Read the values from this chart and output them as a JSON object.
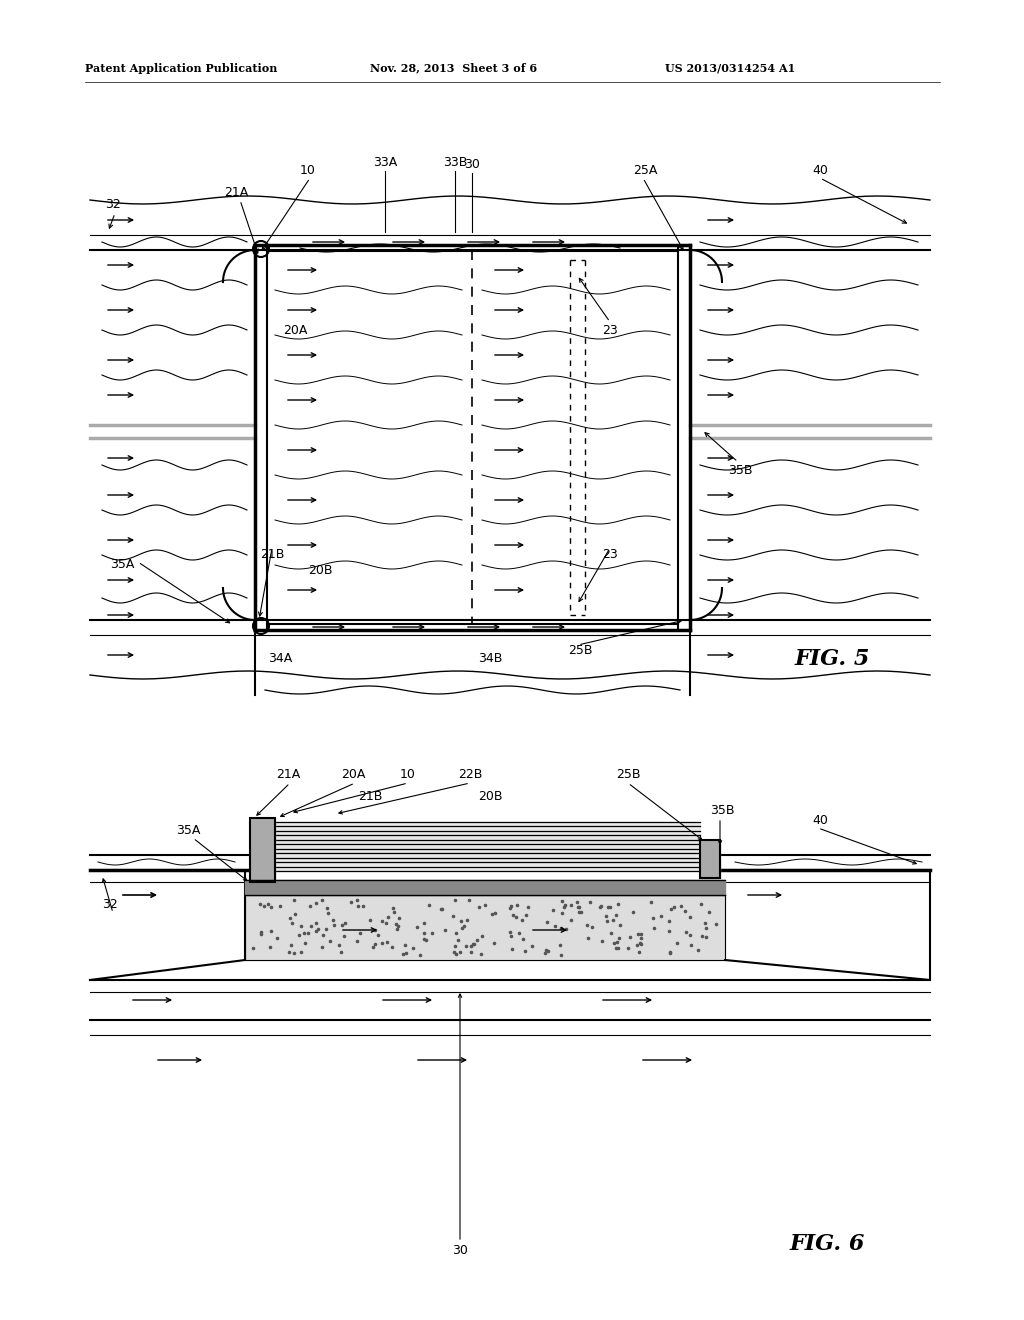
{
  "bg_color": "#ffffff",
  "header_left": "Patent Application Publication",
  "header_mid": "Nov. 28, 2013  Sheet 3 of 6",
  "header_right": "US 2013/0314254 A1",
  "fig5_label": "FIG. 5",
  "fig6_label": "FIG. 6",
  "black": "#000000",
  "gray": "#aaaaaa",
  "darkgray": "#555555",
  "lightgray": "#dddddd",
  "medgray": "#888888"
}
